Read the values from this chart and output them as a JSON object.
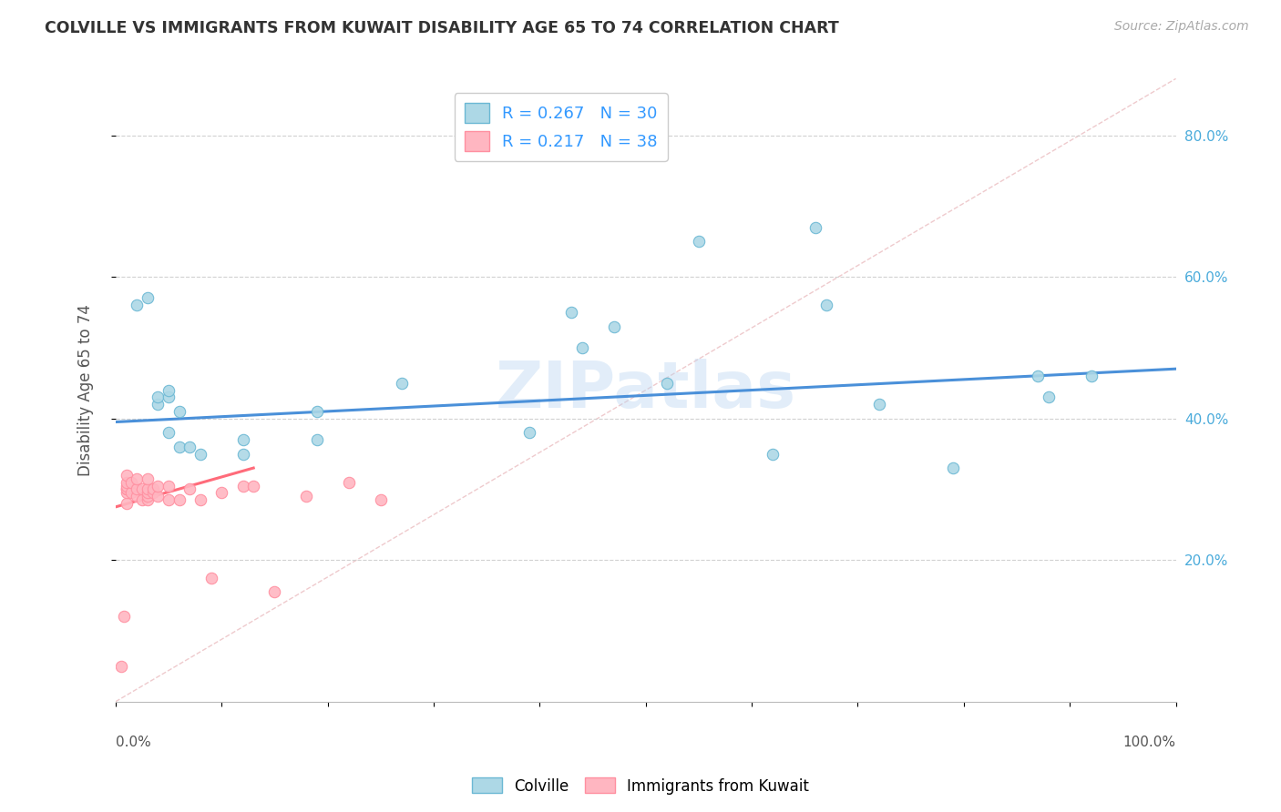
{
  "title": "COLVILLE VS IMMIGRANTS FROM KUWAIT DISABILITY AGE 65 TO 74 CORRELATION CHART",
  "source_text": "Source: ZipAtlas.com",
  "ylabel": "Disability Age 65 to 74",
  "xlim": [
    0.0,
    1.0
  ],
  "ylim": [
    0.0,
    0.88
  ],
  "ytick_vals": [
    0.2,
    0.4,
    0.6,
    0.8
  ],
  "ytick_labels": [
    "20.0%",
    "40.0%",
    "60.0%",
    "80.0%"
  ],
  "xtick_vals": [
    0.0,
    0.1,
    0.2,
    0.3,
    0.4,
    0.5,
    0.6,
    0.7,
    0.8,
    0.9,
    1.0
  ],
  "x_edge_labels": [
    "0.0%",
    "100.0%"
  ],
  "legend_r1": "0.267",
  "legend_n1": "30",
  "legend_r2": "0.217",
  "legend_n2": "38",
  "color_blue_fill": "#ADD8E6",
  "color_blue_edge": "#6BB8D4",
  "color_blue_line": "#4A90D9",
  "color_pink_fill": "#FFB6C1",
  "color_pink_edge": "#FF8FA0",
  "color_pink_line": "#FF6B7A",
  "color_diag": "#E8B4B8",
  "background_color": "#FFFFFF",
  "grid_color": "#CCCCCC",
  "watermark": "ZIPatlas",
  "colville_x": [
    0.02,
    0.03,
    0.04,
    0.04,
    0.05,
    0.05,
    0.05,
    0.06,
    0.06,
    0.07,
    0.08,
    0.12,
    0.12,
    0.19,
    0.19,
    0.27,
    0.39,
    0.43,
    0.44,
    0.47,
    0.52,
    0.55,
    0.62,
    0.66,
    0.67,
    0.72,
    0.79,
    0.87,
    0.88,
    0.92
  ],
  "colville_y": [
    0.56,
    0.57,
    0.42,
    0.43,
    0.43,
    0.44,
    0.38,
    0.36,
    0.41,
    0.36,
    0.35,
    0.35,
    0.37,
    0.37,
    0.41,
    0.45,
    0.38,
    0.55,
    0.5,
    0.53,
    0.45,
    0.65,
    0.35,
    0.67,
    0.56,
    0.42,
    0.33,
    0.46,
    0.43,
    0.46
  ],
  "kuwait_x": [
    0.005,
    0.008,
    0.01,
    0.01,
    0.01,
    0.01,
    0.01,
    0.01,
    0.01,
    0.015,
    0.015,
    0.02,
    0.02,
    0.02,
    0.025,
    0.025,
    0.03,
    0.03,
    0.03,
    0.03,
    0.03,
    0.035,
    0.035,
    0.04,
    0.04,
    0.05,
    0.05,
    0.06,
    0.07,
    0.08,
    0.09,
    0.1,
    0.12,
    0.13,
    0.15,
    0.18,
    0.22,
    0.25
  ],
  "kuwait_y": [
    0.05,
    0.12,
    0.28,
    0.295,
    0.3,
    0.3,
    0.305,
    0.31,
    0.32,
    0.295,
    0.31,
    0.29,
    0.3,
    0.315,
    0.285,
    0.3,
    0.285,
    0.29,
    0.295,
    0.3,
    0.315,
    0.295,
    0.3,
    0.29,
    0.305,
    0.285,
    0.305,
    0.285,
    0.3,
    0.285,
    0.175,
    0.295,
    0.305,
    0.305,
    0.155,
    0.29,
    0.31,
    0.285
  ],
  "colville_trend_x": [
    0.0,
    1.0
  ],
  "colville_trend_y": [
    0.395,
    0.47
  ],
  "kuwait_trend_x": [
    0.0,
    0.13
  ],
  "kuwait_trend_y": [
    0.275,
    0.33
  ]
}
